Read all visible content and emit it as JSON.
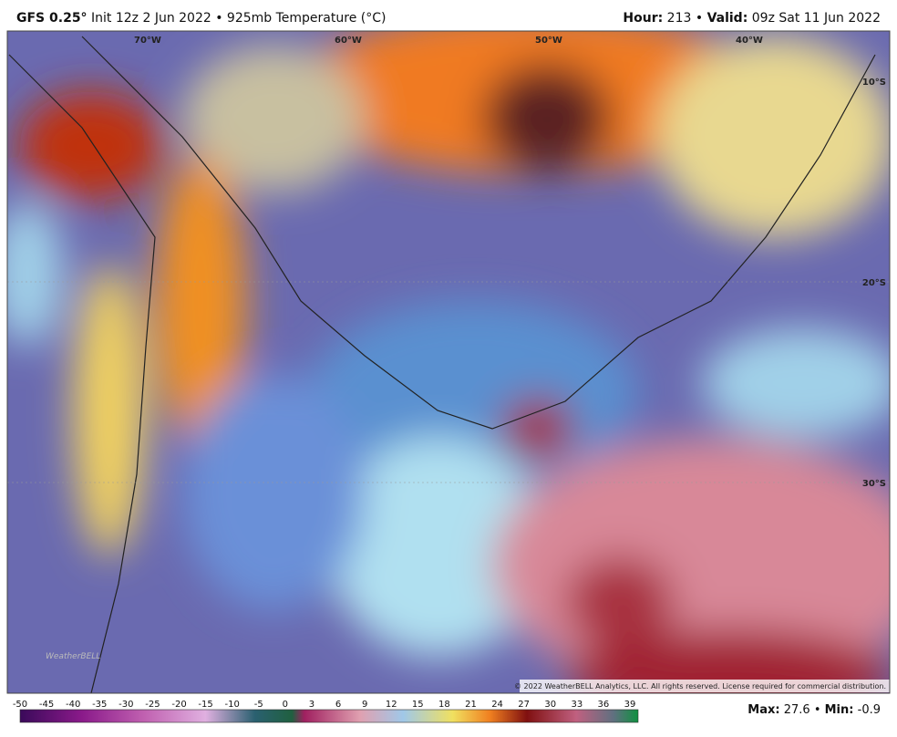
{
  "header": {
    "model": "GFS 0.25°",
    "description": "Init 12z 2 Jun 2022 • 925mb Temperature (°C)",
    "hour_label": "Hour:",
    "hour": "213",
    "separator": "•",
    "valid_label": "Valid:",
    "valid": "09z Sat 11 Jun 2022"
  },
  "map": {
    "longitude_labels": [
      "70°W",
      "60°W",
      "50°W",
      "40°W"
    ],
    "latitude_labels": [
      "10°S",
      "20°S",
      "30°S"
    ],
    "watermark": "WeatherBELL",
    "copyright": "© 2022 WeatherBELL Analytics, LLC. All rights reserved. License required for commercial distribution."
  },
  "colorbar": {
    "labels": [
      "-50",
      "-45",
      "-40",
      "-35",
      "-30",
      "-25",
      "-20",
      "-15",
      "-10",
      "-5",
      "0",
      "3",
      "6",
      "9",
      "12",
      "15",
      "18",
      "21",
      "24",
      "27",
      "30",
      "33",
      "36",
      "39"
    ]
  },
  "stats": {
    "max_label": "Max:",
    "max": "27.6",
    "separator": "•",
    "min_label": "Min:",
    "min": "-0.9"
  }
}
